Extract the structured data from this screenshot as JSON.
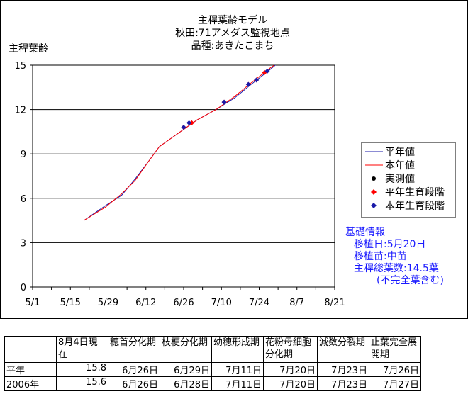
{
  "title_lines": [
    "主稈葉齢モデル",
    "秋田:71アメダス監視地点",
    "品種:あきたこまち"
  ],
  "y_axis_label": "主稈葉齢",
  "legend": [
    {
      "label": "平年値",
      "kind": "line",
      "color": "#1a1aa8"
    },
    {
      "label": "本年値",
      "kind": "line",
      "color": "#ff0000"
    },
    {
      "label": "実測値",
      "kind": "marker",
      "color": "#000000"
    },
    {
      "label": "平年生育段階",
      "kind": "marker",
      "color": "#ff0000"
    },
    {
      "label": "本年生育段階",
      "kind": "marker",
      "color": "#1a1aa8"
    }
  ],
  "info": {
    "heading": "基礎情報",
    "lines": [
      "移植日:5月20日",
      "移植苗:中苗",
      "主稈総葉数:14.5葉",
      "(不完全葉含む)"
    ]
  },
  "chart_data": {
    "type": "line",
    "title": "主稈葉齢モデル",
    "ylabel": "主稈葉齢",
    "x_tick_labels": [
      "5/1",
      "5/15",
      "5/29",
      "6/12",
      "6/26",
      "7/10",
      "7/24",
      "8/7",
      "8/21"
    ],
    "y_ticks": [
      0,
      3,
      6,
      9,
      12,
      15
    ],
    "ylim": [
      0,
      15
    ],
    "xlim": [
      "5/1",
      "8/21"
    ],
    "grid": "horizontal",
    "series": [
      {
        "name": "平年値",
        "color": "#1a1aa8",
        "points": [
          [
            "5/20",
            4.5
          ],
          [
            "5/28",
            5.5
          ],
          [
            "6/3",
            6.2
          ],
          [
            "6/8",
            7.3
          ],
          [
            "6/13",
            8.5
          ],
          [
            "6/17",
            9.5
          ],
          [
            "6/24",
            10.4
          ],
          [
            "7/1",
            11.3
          ],
          [
            "7/8",
            12.0
          ],
          [
            "7/15",
            12.8
          ],
          [
            "7/21",
            13.7
          ],
          [
            "7/28",
            14.7
          ],
          [
            "8/1",
            15.3
          ]
        ]
      },
      {
        "name": "本年値",
        "color": "#ff0000",
        "points": [
          [
            "5/20",
            4.5
          ],
          [
            "5/28",
            5.4
          ],
          [
            "6/3",
            6.3
          ],
          [
            "6/8",
            7.2
          ],
          [
            "6/13",
            8.5
          ],
          [
            "6/17",
            9.5
          ],
          [
            "6/24",
            10.4
          ],
          [
            "7/1",
            11.3
          ],
          [
            "7/8",
            12.0
          ],
          [
            "7/15",
            12.9
          ],
          [
            "7/21",
            13.8
          ],
          [
            "7/28",
            14.8
          ],
          [
            "8/1",
            15.3
          ]
        ]
      },
      {
        "name": "実測値",
        "color": "#000000",
        "points": []
      },
      {
        "name": "平年生育段階",
        "color": "#ff0000",
        "points": [
          [
            "6/26",
            10.8
          ],
          [
            "6/29",
            11.1
          ],
          [
            "7/11",
            12.5
          ],
          [
            "7/20",
            13.7
          ],
          [
            "7/23",
            14.0
          ],
          [
            "7/26",
            14.5
          ]
        ]
      },
      {
        "name": "本年生育段階",
        "color": "#1a1aa8",
        "points": [
          [
            "6/26",
            10.8
          ],
          [
            "6/28",
            11.1
          ],
          [
            "7/11",
            12.5
          ],
          [
            "7/20",
            13.7
          ],
          [
            "7/23",
            14.0
          ],
          [
            "7/27",
            14.6
          ]
        ]
      }
    ]
  },
  "stage_table": {
    "headers": [
      "",
      "8月4日現在",
      "穂首分化期",
      "枝梗分化期",
      "幼穂形成期",
      "花粉母細胞分化期",
      "減数分裂期",
      "止葉完全展開期"
    ],
    "rows": [
      [
        "平年",
        "15.8",
        "6月26日",
        "6月29日",
        "7月11日",
        "7月20日",
        "7月23日",
        "7月26日"
      ],
      [
        "2006年",
        "15.6",
        "6月26日",
        "6月28日",
        "7月11日",
        "7月20日",
        "7月23日",
        "7月27日"
      ]
    ]
  }
}
